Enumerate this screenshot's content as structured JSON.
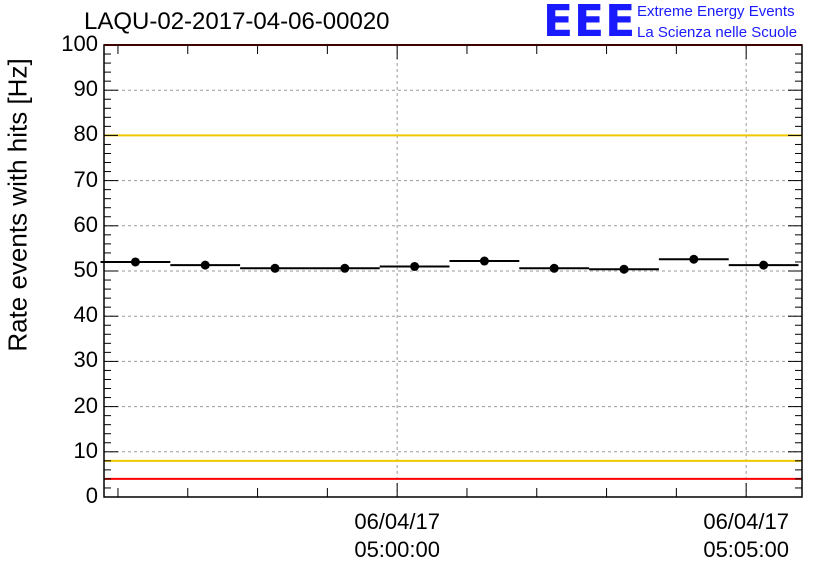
{
  "chart_data": {
    "type": "scatter",
    "title": "LAQU-02-2017-04-06-00020",
    "ylabel": "Rate events with hits [Hz]",
    "xlabel": "",
    "ylim": [
      0,
      100
    ],
    "yticks": [
      "0",
      "10",
      "20",
      "30",
      "40",
      "50",
      "60",
      "70",
      "80",
      "90",
      "100"
    ],
    "grid": true,
    "x_major_ticks": [
      {
        "line1": "06/04/17",
        "line2": "05:00:00",
        "minute": 0
      },
      {
        "line1": "06/04/17",
        "line2": "05:05:00",
        "minute": 5
      }
    ],
    "x_range_minutes": [
      -4.2,
      5.8
    ],
    "series": [
      {
        "name": "rate",
        "points": [
          {
            "x": -3.75,
            "y": 52.0,
            "xerr": 0.5
          },
          {
            "x": -2.75,
            "y": 51.3,
            "xerr": 0.5
          },
          {
            "x": -1.75,
            "y": 50.6,
            "xerr": 0.5
          },
          {
            "x": -0.75,
            "y": 50.6,
            "xerr": 0.5
          },
          {
            "x": 0.25,
            "y": 51.0,
            "xerr": 0.5
          },
          {
            "x": 1.25,
            "y": 52.2,
            "xerr": 0.5
          },
          {
            "x": 2.25,
            "y": 50.6,
            "xerr": 0.5
          },
          {
            "x": 3.25,
            "y": 50.4,
            "xerr": 0.5
          },
          {
            "x": 4.25,
            "y": 52.6,
            "xerr": 0.5
          },
          {
            "x": 5.25,
            "y": 51.3,
            "xerr": 0.5
          }
        ]
      }
    ],
    "threshold_lines": [
      {
        "name": "upper-red",
        "y": 100,
        "color": "#ff0000"
      },
      {
        "name": "upper-yellow",
        "y": 80,
        "color": "#f0c800"
      },
      {
        "name": "lower-yellow",
        "y": 8,
        "color": "#f0c800"
      },
      {
        "name": "lower-red",
        "y": 4,
        "color": "#ff0000"
      }
    ]
  },
  "logo": {
    "mark": "EEE",
    "line1": "Extreme Energy Events",
    "line2": "La Scienza nelle Scuole"
  }
}
